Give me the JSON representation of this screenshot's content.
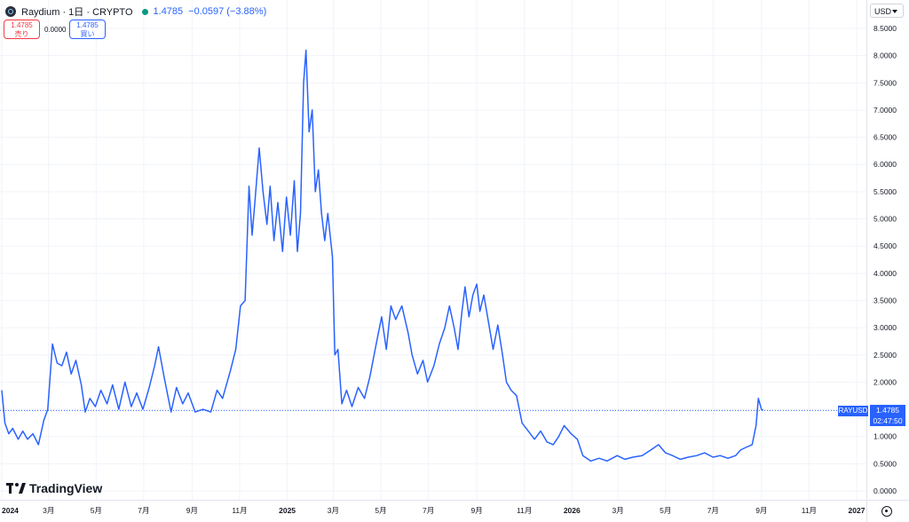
{
  "header": {
    "symbol": "Raydium · 1日 · CRYPTO",
    "last_price": "1.4785",
    "change": "−0.0597 (−3.88%)",
    "status_color": "#089981"
  },
  "trade": {
    "sell_price": "1.4785",
    "sell_label": "売り",
    "spread": "0.0000",
    "buy_price": "1.4785",
    "buy_label": "買い"
  },
  "currency": "USD",
  "price_label": {
    "symbol": "RAYUSD",
    "price": "1.4785",
    "countdown": "02:47:50"
  },
  "brand": "TradingView",
  "icons": {
    "logo": "raydium-logo-icon",
    "settings": "gear-icon",
    "dropdown": "chevron-down-icon"
  },
  "chart_data": {
    "type": "line",
    "line_color": "#2962ff",
    "grid": true,
    "ylim": [
      0.0,
      8.5
    ],
    "y_ticks": [
      "8.5000",
      "8.0000",
      "7.5000",
      "7.0000",
      "6.5000",
      "6.0000",
      "5.5000",
      "5.0000",
      "4.5000",
      "4.0000",
      "3.5000",
      "3.0000",
      "2.5000",
      "2.0000",
      "1.5000",
      "1.0000",
      "0.5000",
      "0.0000"
    ],
    "x_ticks": [
      "2024",
      "3月",
      "5月",
      "7月",
      "9月",
      "11月",
      "2025",
      "3月",
      "5月",
      "7月",
      "9月",
      "11月",
      "2026",
      "3月",
      "5月",
      "7月",
      "9月",
      "11月",
      "2027"
    ],
    "last_value": 1.4785,
    "series": [
      {
        "values": [
          [
            "2024-01-01",
            1.85
          ],
          [
            "2024-01-05",
            1.25
          ],
          [
            "2024-01-10",
            1.05
          ],
          [
            "2024-01-15",
            1.15
          ],
          [
            "2024-01-22",
            0.95
          ],
          [
            "2024-01-28",
            1.1
          ],
          [
            "2024-02-03",
            0.95
          ],
          [
            "2024-02-10",
            1.05
          ],
          [
            "2024-02-17",
            0.85
          ],
          [
            "2024-02-24",
            1.3
          ],
          [
            "2024-02-29",
            1.5
          ],
          [
            "2024-03-06",
            2.7
          ],
          [
            "2024-03-12",
            2.35
          ],
          [
            "2024-03-18",
            2.3
          ],
          [
            "2024-03-24",
            2.55
          ],
          [
            "2024-03-30",
            2.15
          ],
          [
            "2024-04-05",
            2.4
          ],
          [
            "2024-04-12",
            1.95
          ],
          [
            "2024-04-17",
            1.45
          ],
          [
            "2024-04-23",
            1.7
          ],
          [
            "2024-04-30",
            1.55
          ],
          [
            "2024-05-07",
            1.85
          ],
          [
            "2024-05-15",
            1.6
          ],
          [
            "2024-05-22",
            1.95
          ],
          [
            "2024-05-30",
            1.5
          ],
          [
            "2024-06-07",
            2.0
          ],
          [
            "2024-06-15",
            1.55
          ],
          [
            "2024-06-22",
            1.8
          ],
          [
            "2024-06-30",
            1.5
          ],
          [
            "2024-07-08",
            1.9
          ],
          [
            "2024-07-15",
            2.3
          ],
          [
            "2024-07-20",
            2.65
          ],
          [
            "2024-07-27",
            2.1
          ],
          [
            "2024-08-05",
            1.45
          ],
          [
            "2024-08-12",
            1.9
          ],
          [
            "2024-08-20",
            1.6
          ],
          [
            "2024-08-27",
            1.8
          ],
          [
            "2024-09-05",
            1.45
          ],
          [
            "2024-09-15",
            1.5
          ],
          [
            "2024-09-25",
            1.45
          ],
          [
            "2024-10-03",
            1.85
          ],
          [
            "2024-10-10",
            1.7
          ],
          [
            "2024-10-20",
            2.2
          ],
          [
            "2024-10-27",
            2.6
          ],
          [
            "2024-11-02",
            3.4
          ],
          [
            "2024-11-08",
            3.5
          ],
          [
            "2024-11-13",
            5.6
          ],
          [
            "2024-11-17",
            4.7
          ],
          [
            "2024-11-21",
            5.4
          ],
          [
            "2024-11-26",
            6.3
          ],
          [
            "2024-12-01",
            5.5
          ],
          [
            "2024-12-06",
            4.9
          ],
          [
            "2024-12-10",
            5.6
          ],
          [
            "2024-12-15",
            4.6
          ],
          [
            "2024-12-20",
            5.3
          ],
          [
            "2024-12-26",
            4.4
          ],
          [
            "2024-12-31",
            5.4
          ],
          [
            "2025-01-05",
            4.7
          ],
          [
            "2025-01-10",
            5.7
          ],
          [
            "2025-01-14",
            4.4
          ],
          [
            "2025-01-18",
            5.1
          ],
          [
            "2025-01-22",
            7.5
          ],
          [
            "2025-01-25",
            8.1
          ],
          [
            "2025-01-29",
            6.6
          ],
          [
            "2025-02-02",
            7.0
          ],
          [
            "2025-02-06",
            5.5
          ],
          [
            "2025-02-10",
            5.9
          ],
          [
            "2025-02-14",
            5.1
          ],
          [
            "2025-02-18",
            4.6
          ],
          [
            "2025-02-22",
            5.1
          ],
          [
            "2025-02-28",
            4.3
          ],
          [
            "2025-03-03",
            2.5
          ],
          [
            "2025-03-07",
            2.6
          ],
          [
            "2025-03-12",
            1.6
          ],
          [
            "2025-03-18",
            1.85
          ],
          [
            "2025-03-25",
            1.55
          ],
          [
            "2025-04-02",
            1.9
          ],
          [
            "2025-04-10",
            1.7
          ],
          [
            "2025-04-17",
            2.1
          ],
          [
            "2025-04-25",
            2.7
          ],
          [
            "2025-05-02",
            3.2
          ],
          [
            "2025-05-08",
            2.6
          ],
          [
            "2025-05-14",
            3.4
          ],
          [
            "2025-05-20",
            3.15
          ],
          [
            "2025-05-28",
            3.4
          ],
          [
            "2025-06-05",
            2.9
          ],
          [
            "2025-06-10",
            2.5
          ],
          [
            "2025-06-17",
            2.15
          ],
          [
            "2025-06-24",
            2.4
          ],
          [
            "2025-06-30",
            2.0
          ],
          [
            "2025-07-08",
            2.3
          ],
          [
            "2025-07-15",
            2.7
          ],
          [
            "2025-07-22",
            3.0
          ],
          [
            "2025-07-28",
            3.4
          ],
          [
            "2025-08-03",
            3.0
          ],
          [
            "2025-08-08",
            2.6
          ],
          [
            "2025-08-13",
            3.3
          ],
          [
            "2025-08-17",
            3.75
          ],
          [
            "2025-08-22",
            3.2
          ],
          [
            "2025-08-27",
            3.6
          ],
          [
            "2025-09-01",
            3.8
          ],
          [
            "2025-09-05",
            3.3
          ],
          [
            "2025-09-10",
            3.6
          ],
          [
            "2025-09-16",
            3.1
          ],
          [
            "2025-09-22",
            2.6
          ],
          [
            "2025-09-28",
            3.05
          ],
          [
            "2025-10-04",
            2.5
          ],
          [
            "2025-10-09",
            2.0
          ],
          [
            "2025-10-15",
            1.85
          ],
          [
            "2025-10-22",
            1.75
          ],
          [
            "2025-10-29",
            1.25
          ],
          [
            "2025-11-06",
            1.1
          ],
          [
            "2025-11-14",
            0.95
          ],
          [
            "2025-11-22",
            1.1
          ],
          [
            "2025-11-30",
            0.9
          ],
          [
            "2025-12-08",
            0.85
          ],
          [
            "2025-12-15",
            1.0
          ],
          [
            "2025-12-22",
            1.2
          ],
          [
            "2025-12-31",
            1.05
          ],
          [
            "2026-01-08",
            0.95
          ],
          [
            "2026-01-15",
            0.65
          ],
          [
            "2026-01-25",
            0.55
          ],
          [
            "2026-02-05",
            0.6
          ],
          [
            "2026-02-15",
            0.55
          ],
          [
            "2026-02-28",
            0.65
          ],
          [
            "2026-03-10",
            0.58
          ],
          [
            "2026-03-20",
            0.62
          ],
          [
            "2026-04-01",
            0.65
          ],
          [
            "2026-04-12",
            0.75
          ],
          [
            "2026-04-22",
            0.85
          ],
          [
            "2026-05-01",
            0.7
          ],
          [
            "2026-05-10",
            0.65
          ],
          [
            "2026-05-20",
            0.58
          ],
          [
            "2026-05-30",
            0.62
          ],
          [
            "2026-06-10",
            0.65
          ],
          [
            "2026-06-20",
            0.7
          ],
          [
            "2026-07-01",
            0.62
          ],
          [
            "2026-07-10",
            0.65
          ],
          [
            "2026-07-20",
            0.6
          ],
          [
            "2026-07-30",
            0.65
          ],
          [
            "2026-08-05",
            0.75
          ],
          [
            "2026-08-12",
            0.8
          ],
          [
            "2026-08-20",
            0.85
          ],
          [
            "2026-08-25",
            1.2
          ],
          [
            "2026-08-28",
            1.7
          ],
          [
            "2026-09-01",
            1.5
          ],
          [
            "2026-09-03",
            1.48
          ]
        ]
      }
    ]
  }
}
